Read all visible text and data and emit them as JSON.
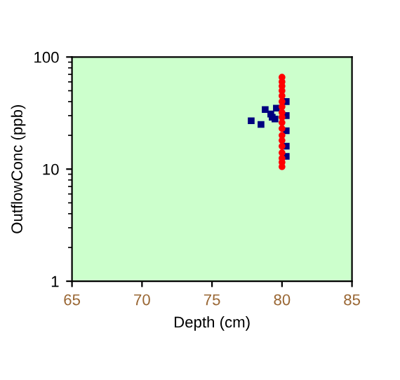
{
  "chart_data": {
    "type": "scatter",
    "xlabel": "Depth (cm)",
    "ylabel": "OutflowConc (ppb)",
    "log": "y",
    "xlim": [
      65,
      85
    ],
    "xticks": [
      65,
      70,
      75,
      80,
      85
    ],
    "ylim": [
      1,
      100
    ],
    "yticks": [
      1,
      10,
      100
    ],
    "grid": false,
    "legend": false,
    "series": [
      {
        "color": "#000080",
        "marker": "square",
        "x": [
          77.8,
          78.5,
          78.8,
          79.2,
          79.3,
          79.5,
          79.6,
          80.3,
          80.3,
          80.3,
          80.3,
          80.3
        ],
        "values": [
          27,
          25,
          34,
          31,
          29,
          28,
          35,
          40,
          30,
          22,
          16,
          13
        ]
      },
      {
        "color": "#ff0000",
        "marker": "circle",
        "x": [
          80,
          80,
          80,
          80,
          80,
          80,
          80,
          80,
          80,
          80,
          80,
          80,
          80,
          80,
          80,
          80,
          80,
          80
        ],
        "values": [
          66,
          60,
          55,
          50,
          45,
          40,
          36,
          32,
          29,
          26,
          23,
          20,
          18,
          16,
          14,
          12.5,
          11.5,
          10.5
        ]
      }
    ]
  }
}
